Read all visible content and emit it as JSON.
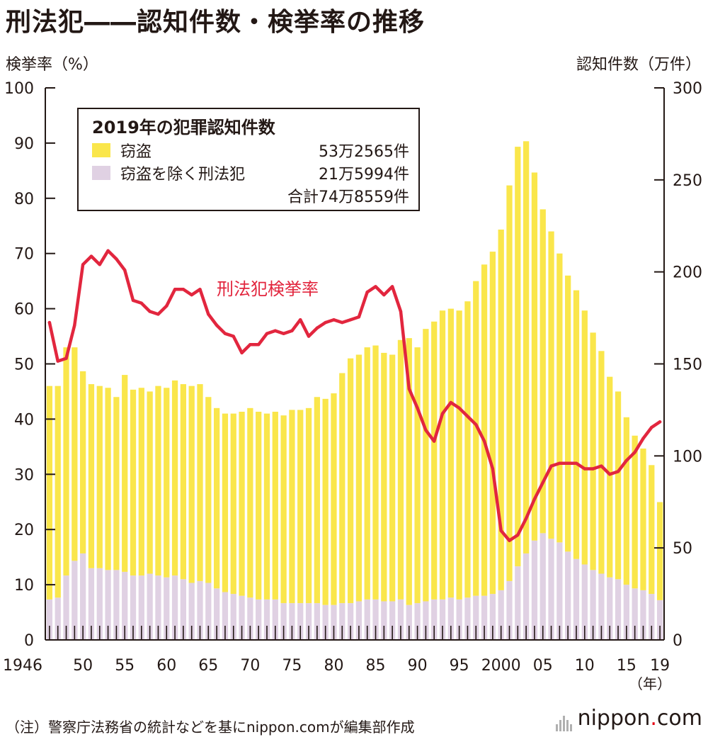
{
  "title": "刑法犯――認知件数・検挙率の推移",
  "left_axis_label": "検挙率（%）",
  "right_axis_label": "認知件数（万件）",
  "year_unit": "（年）",
  "footnote": "（注）警察庁法務省の統計などを基にnippon.comが編集部作成",
  "logo": {
    "text": "nippon",
    "dot": ".",
    "suffix": "com"
  },
  "legend": {
    "title": "2019年の犯罪認知件数",
    "items": [
      {
        "label": "窃盗",
        "value": "53万2565件",
        "color": "#fae64b"
      },
      {
        "label": "窃盗を除く刑法犯",
        "value": "21万5994件",
        "color": "#e0d1e3"
      }
    ],
    "total": "合計74万8559件"
  },
  "line_label": "刑法犯検挙率",
  "colors": {
    "theft": "#fae64b",
    "other": "#e0d1e3",
    "rate_line": "#e2263e",
    "axis": "#231815"
  },
  "chart_data": {
    "type": "bar+line",
    "years": [
      1946,
      1947,
      1948,
      1949,
      1950,
      1951,
      1952,
      1953,
      1954,
      1955,
      1956,
      1957,
      1958,
      1959,
      1960,
      1961,
      1962,
      1963,
      1964,
      1965,
      1966,
      1967,
      1968,
      1969,
      1970,
      1971,
      1972,
      1973,
      1974,
      1975,
      1976,
      1977,
      1978,
      1979,
      1980,
      1981,
      1982,
      1983,
      1984,
      1985,
      1986,
      1987,
      1988,
      1989,
      1990,
      1991,
      1992,
      1993,
      1994,
      1995,
      1996,
      1997,
      1998,
      1999,
      2000,
      2001,
      2002,
      2003,
      2004,
      2005,
      2006,
      2007,
      2008,
      2009,
      2010,
      2011,
      2012,
      2013,
      2014,
      2015,
      2016,
      2017,
      2018,
      2019
    ],
    "x_tick_labels": [
      "1946",
      "50",
      "55",
      "60",
      "65",
      "70",
      "75",
      "80",
      "85",
      "90",
      "95",
      "2000",
      "05",
      "10",
      "15",
      "19"
    ],
    "x_tick_years": [
      1946,
      1950,
      1955,
      1960,
      1965,
      1970,
      1975,
      1980,
      1985,
      1990,
      1995,
      2000,
      2005,
      2010,
      2015,
      2019
    ],
    "left_axis": {
      "label": "検挙率（%）",
      "ylim": [
        0,
        100
      ],
      "ticks": [
        0,
        10,
        20,
        30,
        40,
        50,
        60,
        70,
        80,
        90,
        100
      ]
    },
    "right_axis": {
      "label": "認知件数（万件）",
      "ylim": [
        0,
        300
      ],
      "ticks": [
        0,
        50,
        100,
        150,
        200,
        250,
        300
      ]
    },
    "series": [
      {
        "name": "窃盗",
        "type": "bar-stacked",
        "axis": "right",
        "values": [
          116,
          115,
          124,
          116,
          99,
          100,
          99,
          99,
          94,
          107,
          101,
          102,
          99,
          103,
          103,
          106,
          106,
          107,
          107,
          101,
          98,
          97,
          98,
          100,
          103,
          102,
          101,
          102,
          102,
          105,
          105,
          106,
          112,
          112,
          115,
          125,
          133,
          134,
          137,
          138,
          135,
          134,
          141,
          145,
          139,
          148,
          151,
          157,
          157,
          157,
          161,
          171,
          180,
          186,
          196,
          215,
          228,
          224,
          200,
          176,
          167,
          157,
          150,
          146,
          138,
          129,
          121,
          109,
          102,
          91,
          83,
          77,
          70,
          53.3
        ],
        "value_note": "窃盗 in 万件 (derived from stacked totals)"
      },
      {
        "name": "窃盗を除く刑法犯",
        "type": "bar-stacked",
        "axis": "right",
        "values": [
          22,
          23,
          35,
          43,
          47,
          39,
          39,
          38,
          38,
          37,
          35,
          35,
          36,
          35,
          34,
          35,
          33,
          31,
          32,
          31,
          28,
          26,
          25,
          24,
          23,
          22,
          22,
          22,
          20,
          20,
          20,
          20,
          20,
          19,
          19,
          20,
          20,
          21,
          22,
          22,
          21,
          21,
          22,
          19,
          20,
          21,
          22,
          22,
          23,
          22,
          23,
          24,
          24,
          25,
          27,
          32,
          40,
          47,
          54,
          58,
          55,
          53,
          48,
          44,
          41,
          38,
          36,
          34,
          33,
          30,
          28,
          27,
          25,
          21.6
        ]
      },
      {
        "name": "刑法犯検挙率",
        "type": "line",
        "axis": "left",
        "values": [
          57.5,
          50.5,
          51,
          57,
          68,
          69.5,
          68,
          70.5,
          69,
          67,
          61.5,
          61,
          59.5,
          59,
          60.5,
          63.5,
          63.5,
          62.5,
          63.5,
          59,
          57,
          55.5,
          55,
          52,
          53.5,
          53.5,
          55.5,
          56,
          55.5,
          56,
          58,
          55,
          56.5,
          57.5,
          58,
          57.5,
          58,
          58.5,
          63,
          64,
          62.5,
          64,
          59.5,
          45.5,
          42,
          38,
          36,
          41,
          43,
          42,
          40.5,
          39,
          36,
          31,
          19.8,
          18,
          19,
          22,
          25.5,
          28.5,
          31.5,
          32,
          32,
          32,
          31,
          31,
          31.5,
          30,
          30.5,
          32.5,
          34,
          36.5,
          38.5,
          39.5
        ]
      }
    ]
  }
}
